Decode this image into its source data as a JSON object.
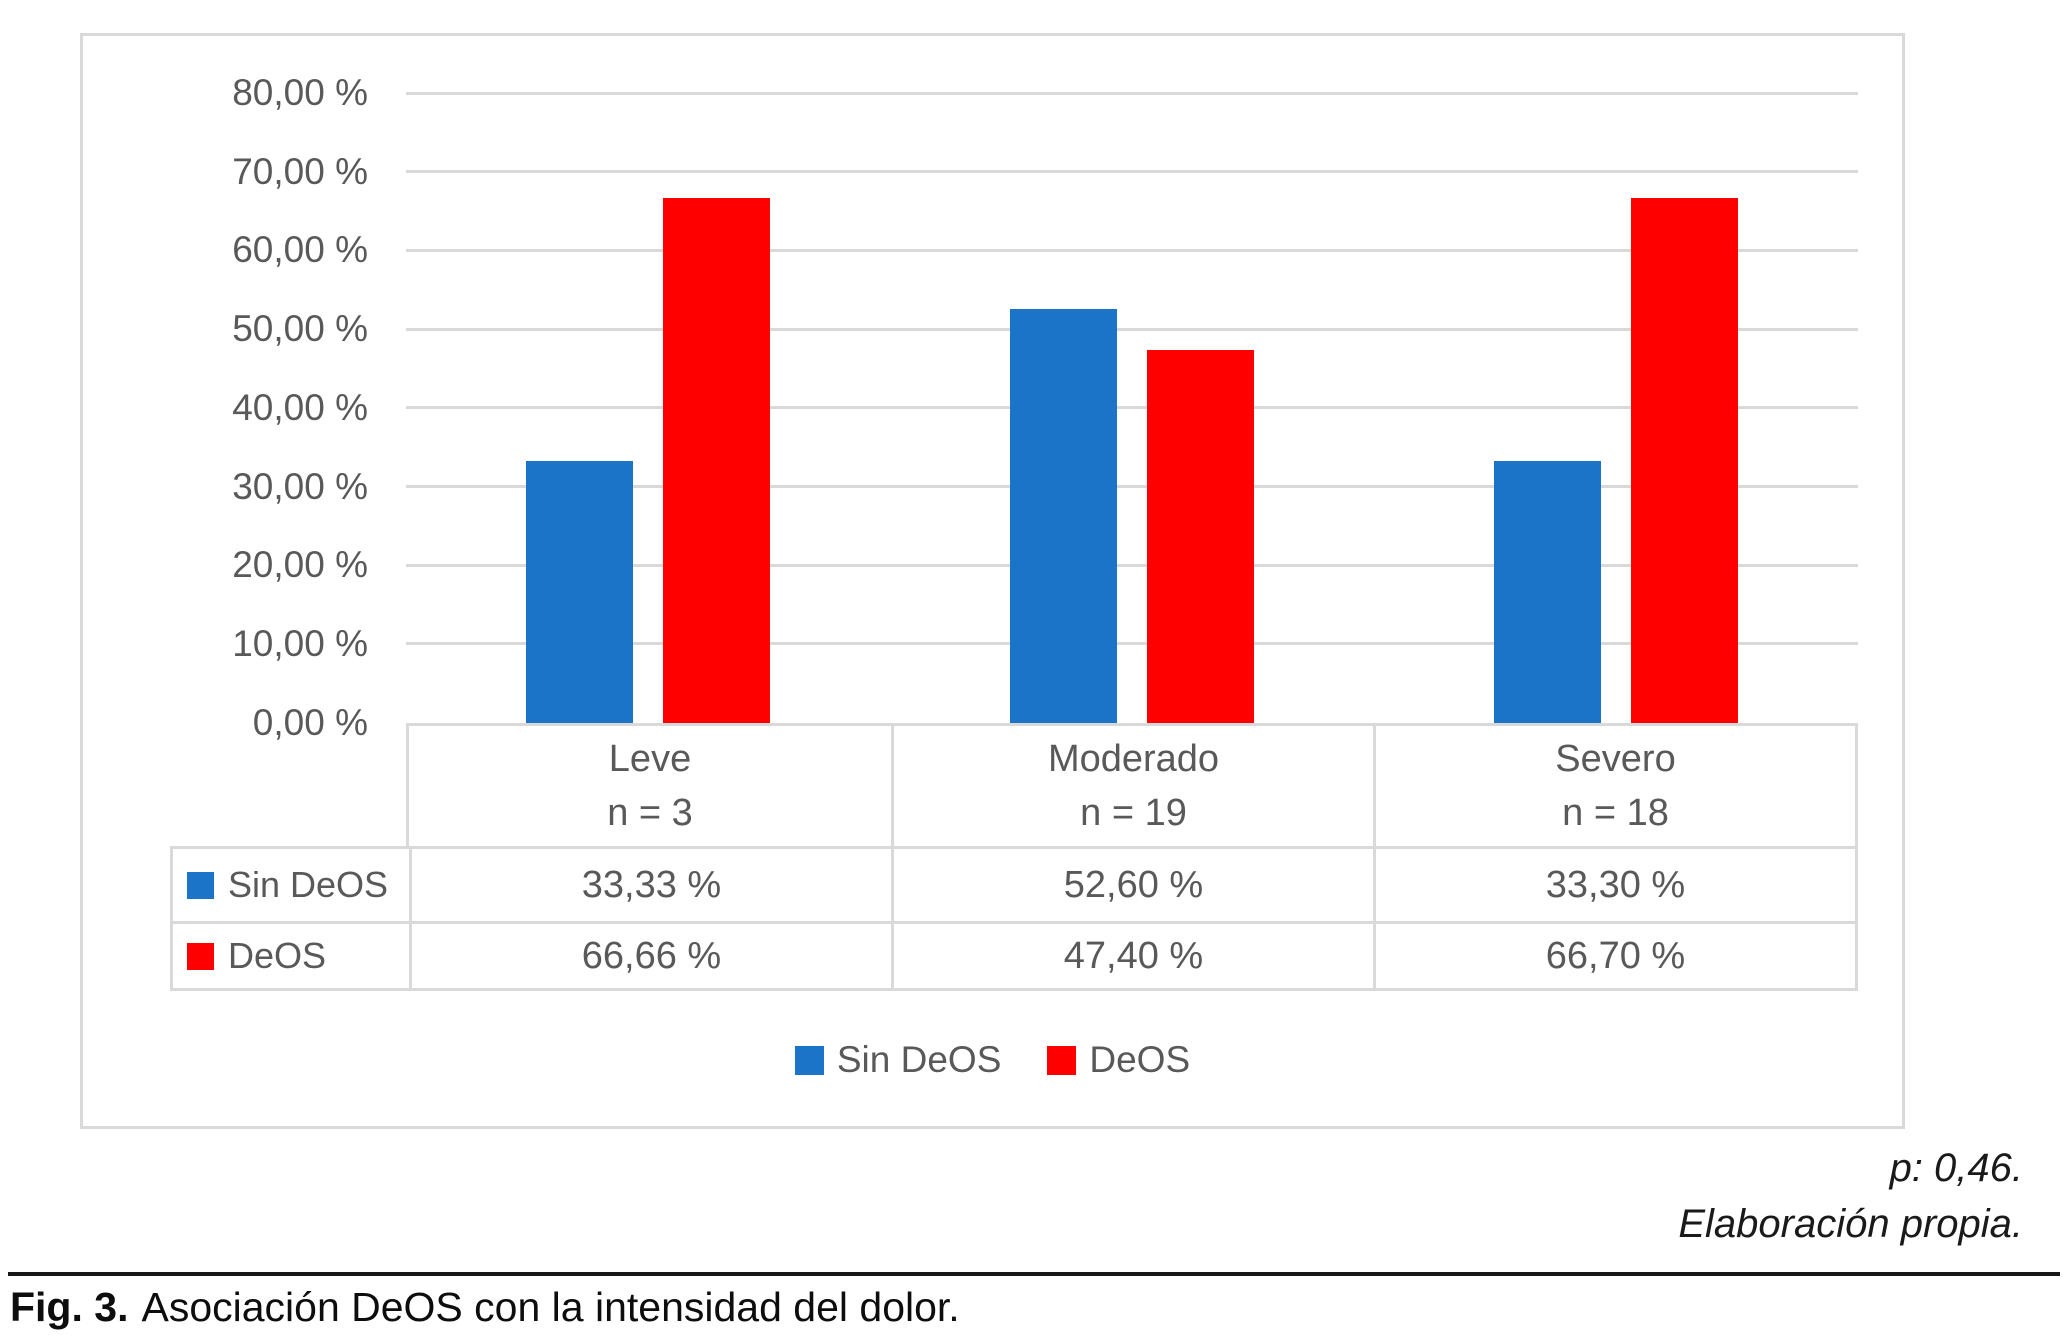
{
  "figure": {
    "caption_label": "Fig. 3.",
    "caption_text": "Asociación DeOS con la intensidad del dolor.",
    "p_value_note": "p: 0,46.",
    "source_note": "Elaboración propia."
  },
  "chart_data": {
    "type": "bar",
    "title": "",
    "categories": [
      "Leve",
      "Moderado",
      "Severo"
    ],
    "category_n": [
      "n = 3",
      "n = 19",
      "n = 18"
    ],
    "series": [
      {
        "name": "Sin DeOS",
        "color": "#1b74c8",
        "values": [
          33.33,
          52.6,
          33.3
        ],
        "labels": [
          "33,33 %",
          "52,60 %",
          "33,30 %"
        ]
      },
      {
        "name": "DeOS",
        "color": "#ff0000",
        "values": [
          66.66,
          47.4,
          66.7
        ],
        "labels": [
          "66,66 %",
          "47,40 %",
          "66,70 %"
        ]
      }
    ],
    "ylim": [
      0,
      80
    ],
    "yticks": [
      "80,00 %",
      "70,00 %",
      "60,00 %",
      "50,00 %",
      "40,00 %",
      "30,00 %",
      "20,00 %",
      "10,00 %",
      "0,00 %"
    ],
    "grid": true,
    "legend_position": "bottom",
    "colors": {
      "gridline": "#d9d9d9",
      "axis_text": "#595959"
    }
  }
}
